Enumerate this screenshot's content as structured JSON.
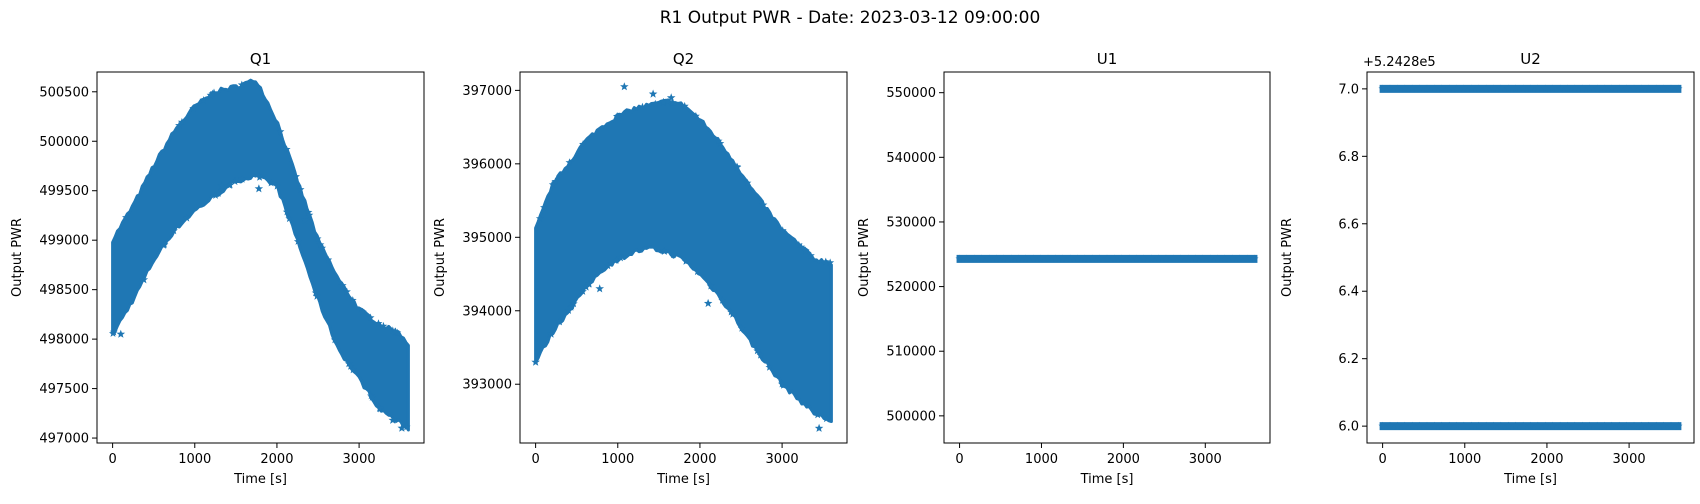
{
  "figure": {
    "suptitle": "R1 Output PWR - Date: 2023-03-12 09:00:00",
    "marker_color": "#1f77b4",
    "marker": "star"
  },
  "chart_data": [
    {
      "type": "scatter",
      "title": "Q1",
      "xlabel": "Time [s]",
      "ylabel": "Output PWR",
      "xlim": [
        -190,
        3790
      ],
      "ylim": [
        496950,
        500700
      ],
      "xticks": [
        0,
        1000,
        2000,
        3000
      ],
      "yticks": [
        497000,
        497500,
        498000,
        498500,
        499000,
        499500,
        500000,
        500500
      ],
      "ytick_labels": [
        "497000",
        "497500",
        "498000",
        "498500",
        "499000",
        "499500",
        "500000",
        "500500"
      ],
      "offset_label": "",
      "band": {
        "x": [
          0,
          250,
          500,
          750,
          1000,
          1250,
          1500,
          1750,
          2000,
          2250,
          2500,
          2750,
          3000,
          3250,
          3500,
          3600
        ],
        "upper": [
          499000,
          499350,
          499750,
          500100,
          500350,
          500500,
          500550,
          500620,
          500200,
          499600,
          499000,
          498600,
          498300,
          498150,
          498050,
          497950
        ],
        "lower": [
          498050,
          498400,
          498800,
          499100,
          499300,
          499450,
          499600,
          499650,
          499550,
          499000,
          498400,
          497900,
          497600,
          497300,
          497150,
          497100
        ]
      },
      "outliers": [
        [
          100,
          498050
        ],
        [
          380,
          498600
        ],
        [
          1330,
          499550
        ],
        [
          1780,
          499520
        ],
        [
          2340,
          499200
        ],
        [
          3250,
          497300
        ],
        [
          3520,
          497100
        ],
        [
          3410,
          497180
        ]
      ]
    },
    {
      "type": "scatter",
      "title": "Q2",
      "xlabel": "Time [s]",
      "ylabel": "Output PWR",
      "xlim": [
        -190,
        3790
      ],
      "ylim": [
        392200,
        397250
      ],
      "xticks": [
        0,
        1000,
        2000,
        3000
      ],
      "yticks": [
        393000,
        394000,
        395000,
        396000,
        397000
      ],
      "ytick_labels": [
        "393000",
        "394000",
        "395000",
        "396000",
        "397000"
      ],
      "offset_label": "",
      "band": {
        "x": [
          0,
          200,
          400,
          600,
          800,
          1000,
          1200,
          1400,
          1600,
          1800,
          2000,
          2200,
          2400,
          2600,
          2800,
          3000,
          3200,
          3400,
          3600
        ],
        "upper": [
          395100,
          395700,
          396000,
          396300,
          396500,
          396650,
          396750,
          396800,
          396850,
          396800,
          396600,
          396350,
          396050,
          395700,
          395400,
          395100,
          394900,
          394700,
          394650
        ],
        "lower": [
          393300,
          393700,
          394000,
          394300,
          394550,
          394700,
          394800,
          394850,
          394800,
          394700,
          394500,
          394250,
          393950,
          393600,
          393300,
          393000,
          392800,
          392600,
          392500
        ]
      },
      "outliers": [
        [
          0,
          393300
        ],
        [
          1080,
          397050
        ],
        [
          1430,
          396950
        ],
        [
          1650,
          396900
        ],
        [
          290,
          393850
        ],
        [
          3450,
          392400
        ],
        [
          2100,
          394100
        ],
        [
          780,
          394300
        ]
      ]
    },
    {
      "type": "scatter",
      "title": "U1",
      "xlabel": "Time [s]",
      "ylabel": "Output PWR",
      "xlim": [
        -190,
        3790
      ],
      "ylim": [
        495800,
        553200
      ],
      "xticks": [
        0,
        1000,
        2000,
        3000
      ],
      "yticks": [
        500000,
        510000,
        520000,
        530000,
        540000,
        550000
      ],
      "ytick_labels": [
        "500000",
        "510000",
        "520000",
        "530000",
        "540000",
        "550000"
      ],
      "offset_label": "",
      "line_value": 524286,
      "x_range": [
        0,
        3600
      ]
    },
    {
      "type": "scatter",
      "title": "U2",
      "xlabel": "Time [s]",
      "ylabel": "Output PWR",
      "xlim": [
        -190,
        3790
      ],
      "ylim": [
        5.95,
        7.05
      ],
      "xticks": [
        0,
        1000,
        2000,
        3000
      ],
      "yticks": [
        6.0,
        6.2,
        6.4,
        6.6,
        6.8,
        7.0
      ],
      "ytick_labels": [
        "6.0",
        "6.2",
        "6.4",
        "6.6",
        "6.8",
        "7.0"
      ],
      "offset_label": "+5.2428e5",
      "levels": [
        6.0,
        7.0
      ],
      "x_range": [
        0,
        3600
      ]
    }
  ]
}
